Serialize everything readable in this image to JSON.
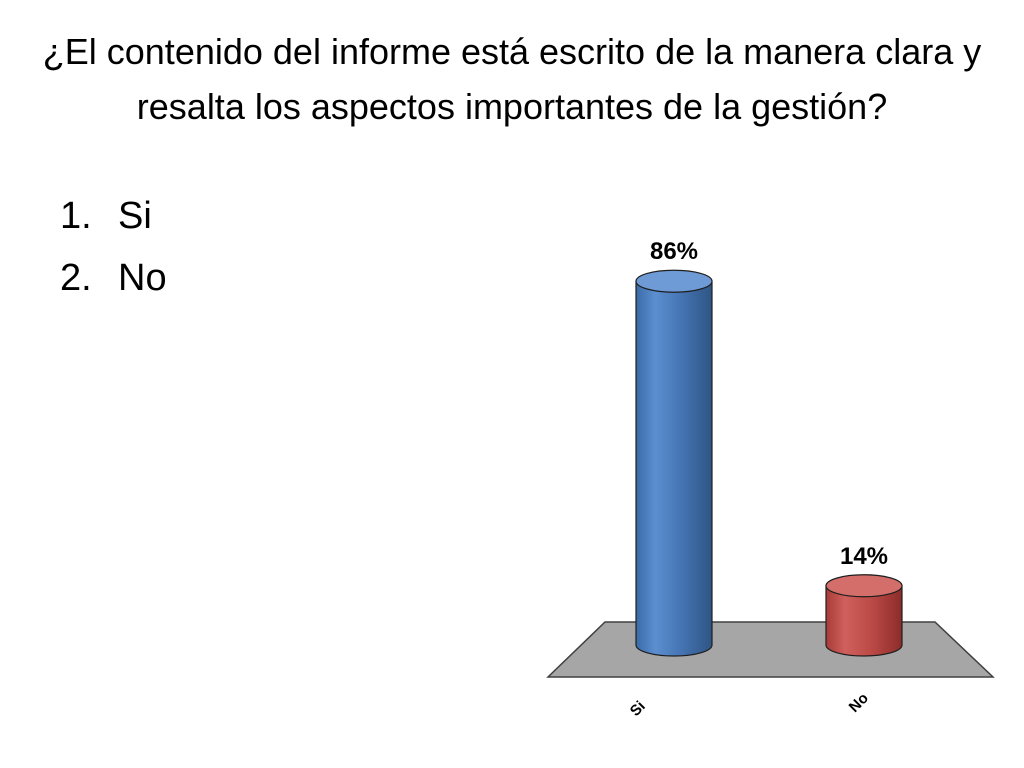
{
  "title": "¿El contenido del informe está escrito de la manera clara y resalta los aspectos importantes de la gestión?",
  "options": [
    {
      "num": "1.",
      "label": "Si"
    },
    {
      "num": "2.",
      "label": "No"
    }
  ],
  "chart_data": {
    "type": "bar",
    "categories": [
      "Si",
      "No"
    ],
    "values": [
      86,
      14
    ],
    "data_labels": [
      "86%",
      "14%"
    ],
    "ylim": [
      0,
      100
    ],
    "grid": false,
    "legend": "none",
    "colors": [
      "#4f81bd",
      "#c0504d"
    ],
    "floor_color": "#a6a6a6"
  }
}
